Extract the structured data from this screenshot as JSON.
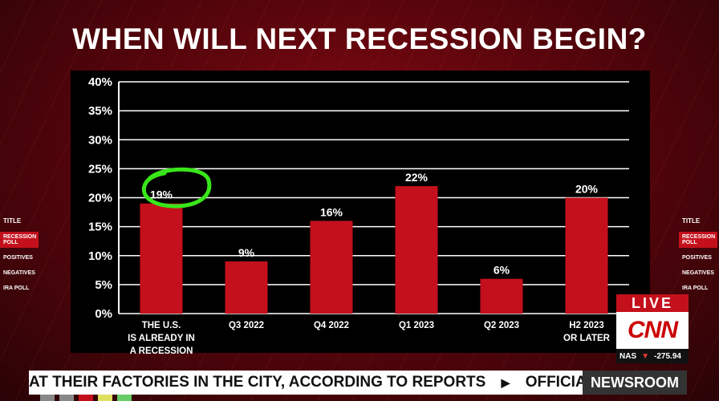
{
  "headline": "WHEN WILL NEXT RECESSION BEGIN?",
  "chart_data": {
    "type": "bar",
    "categories": [
      "THE U.S.\nIS ALREADY IN\nA RECESSION",
      "Q3 2022",
      "Q4 2022",
      "Q1 2023",
      "Q2 2023",
      "H2 2023\nOR LATER"
    ],
    "values": [
      19,
      9,
      16,
      22,
      6,
      20
    ],
    "value_labels": [
      "19%",
      "9%",
      "16%",
      "22%",
      "6%",
      "20%"
    ],
    "ylim": [
      0,
      40
    ],
    "yticks": [
      "0%",
      "5%",
      "10%",
      "15%",
      "20%",
      "25%",
      "30%",
      "35%",
      "40%"
    ],
    "grid": true,
    "bar_color": "#c4101c",
    "annotation": "green circle around first bar label"
  },
  "side_menu": {
    "title": "TITLE",
    "items": [
      "RECESSION POLL",
      "POSITIVES",
      "NEGATIVES",
      "IRA POLL"
    ]
  },
  "live_label": "LIVE",
  "network_logo": "CNN",
  "market": {
    "index": "NAS",
    "direction": "down",
    "change": "-275.94"
  },
  "crawl_text": "AT THEIR FACTORIES IN THE CITY, ACCORDING TO REPORTS",
  "crawl_next": "OFFICIAL DO",
  "show_name": "NEWSROOM",
  "colors": {
    "accent": "#c4101c",
    "highlight": "#39e61a"
  }
}
